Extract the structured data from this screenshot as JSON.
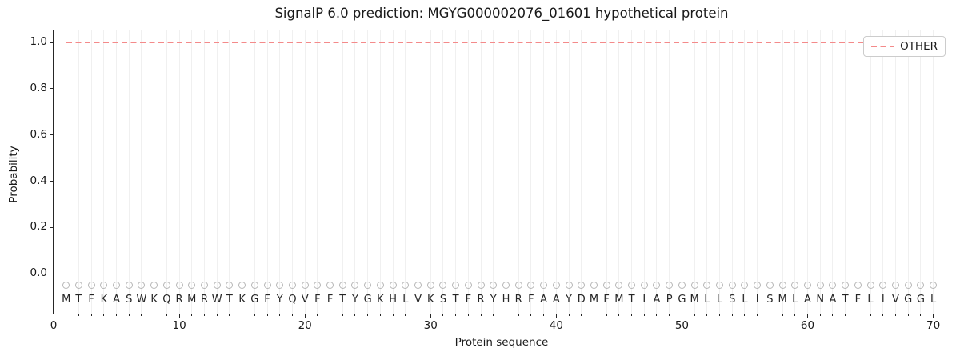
{
  "chart_data": {
    "type": "line",
    "title": "SignalP 6.0 prediction: MGYG000002076_01601 hypothetical protein",
    "xlabel": "Protein sequence",
    "ylabel": "Probability",
    "xlim": [
      0,
      71.3
    ],
    "ylim": [
      -0.172,
      1.052
    ],
    "x_tick_values": [
      0,
      10,
      20,
      30,
      40,
      50,
      60,
      70
    ],
    "x_tick_labels": [
      "0",
      "10",
      "20",
      "30",
      "40",
      "50",
      "60",
      "70"
    ],
    "y_tick_values": [
      0.0,
      0.2,
      0.4,
      0.6,
      0.8,
      1.0
    ],
    "y_tick_labels": [
      "0.0",
      "0.2",
      "0.4",
      "0.6",
      "0.8",
      "1.0"
    ],
    "grid": "vertical gridline and minor x tick at each residue position 1-70",
    "legend": {
      "position": "upper right",
      "entries": [
        {
          "label": "OTHER",
          "color": "#f48a8a",
          "linestyle": "dashed"
        }
      ]
    },
    "series": [
      {
        "name": "OTHER",
        "linestyle": "dashed",
        "color": "#f48a8a",
        "x": [
          1,
          70
        ],
        "y": [
          1.0,
          1.0
        ],
        "note": "constant probability 1.0 across all residues 1-70"
      }
    ],
    "sequence": "MTFKASWKQRMRWTKGFYQVFFTYGKHLVKSTFRYHRFAAYDMFMTIAPGMLLSLISMLANATFLIVGGL",
    "residue_marker": {
      "shape": "open-circle",
      "y": -0.05
    },
    "colors": {
      "line": "#f48a8a",
      "grid": "#f0f0f0",
      "marker": "#b8b8b8",
      "letter": "#262626",
      "spine": "#262626",
      "text": "#1a1a1a",
      "legend_border": "#cccccc"
    }
  }
}
